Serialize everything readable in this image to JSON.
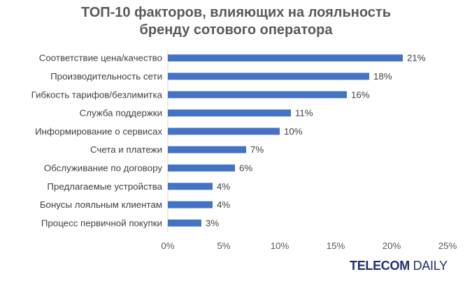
{
  "chart_data": {
    "type": "bar",
    "orientation": "horizontal",
    "title_lines": [
      "ТОП-10 факторов, влияющих на лояльность",
      "бренду сотового оператора"
    ],
    "categories": [
      "Соответствие цена/качество",
      "Производительность сети",
      "Гибкость тарифов/безлимитка",
      "Служба поддержки",
      "Информирование о сервисах",
      "Счета и платежи",
      "Обслуживание по договору",
      "Предлагаемые устройства",
      "Бонусы лояльным клиентам",
      "Процесс первичной покупки"
    ],
    "values": [
      21,
      18,
      16,
      11,
      10,
      7,
      6,
      4,
      4,
      3
    ],
    "value_labels": [
      "21%",
      "18%",
      "16%",
      "11%",
      "10%",
      "7%",
      "6%",
      "4%",
      "4%",
      "3%"
    ],
    "xlim": [
      0,
      25
    ],
    "x_ticks": [
      0,
      5,
      10,
      15,
      20,
      25
    ],
    "x_tick_labels": [
      "0%",
      "5%",
      "10%",
      "15%",
      "20%",
      "25%"
    ],
    "bar_color": "#4472c4",
    "grid": false,
    "legend": "none"
  },
  "brand": {
    "part1": "TELECOM",
    "part2": "DAILY",
    "color": "#1f2f6e"
  }
}
